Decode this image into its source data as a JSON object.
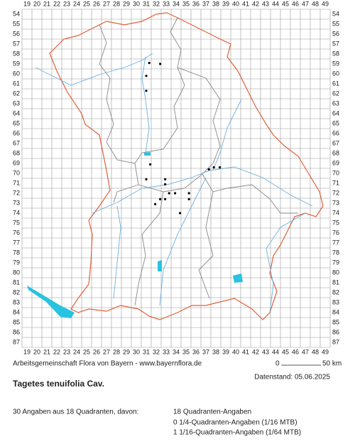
{
  "grid": {
    "columns": [
      19,
      20,
      21,
      22,
      23,
      24,
      25,
      26,
      27,
      28,
      29,
      30,
      31,
      32,
      33,
      34,
      35,
      36,
      37,
      38,
      39,
      40,
      41,
      42,
      43,
      44,
      45,
      46,
      47,
      48,
      49
    ],
    "rows": [
      54,
      55,
      56,
      57,
      58,
      59,
      60,
      61,
      62,
      63,
      64,
      65,
      66,
      67,
      68,
      69,
      70,
      71,
      72,
      73,
      74,
      75,
      76,
      77,
      78,
      79,
      80,
      81,
      82,
      83,
      84,
      85,
      86,
      87
    ]
  },
  "points": [
    [
      31.3,
      58.9
    ],
    [
      32.4,
      59.0
    ],
    [
      31.0,
      60.2
    ],
    [
      31.0,
      61.7
    ],
    [
      31.4,
      69.1
    ],
    [
      31.0,
      70.6
    ],
    [
      32.9,
      70.6
    ],
    [
      32.9,
      71.1
    ],
    [
      33.3,
      72.0
    ],
    [
      33.9,
      72.0
    ],
    [
      35.3,
      72.0
    ],
    [
      32.4,
      72.6
    ],
    [
      32.9,
      72.6
    ],
    [
      31.9,
      73.1
    ],
    [
      35.3,
      72.6
    ],
    [
      34.4,
      74.0
    ],
    [
      37.3,
      69.6
    ],
    [
      37.8,
      69.4
    ],
    [
      38.4,
      69.4
    ]
  ],
  "footer": {
    "credit": "Arbeitsgemeinschaft Flora von Bayern - www.bayernflora.de",
    "scale_start": "0",
    "scale_end": "50 km",
    "date": "Datenstand: 05.06.2025"
  },
  "title": "Tagetes tenuifolia Cav.",
  "summary": {
    "total": "30 Angaben aus 18 Quadranten, davon:",
    "lines": [
      "18 Quadranten-Angaben",
      "0 1/4-Quadranten-Angaben (1/16 MTB)",
      "1 1/16-Quadranten-Angaben (1/64 MTB)"
    ]
  }
}
